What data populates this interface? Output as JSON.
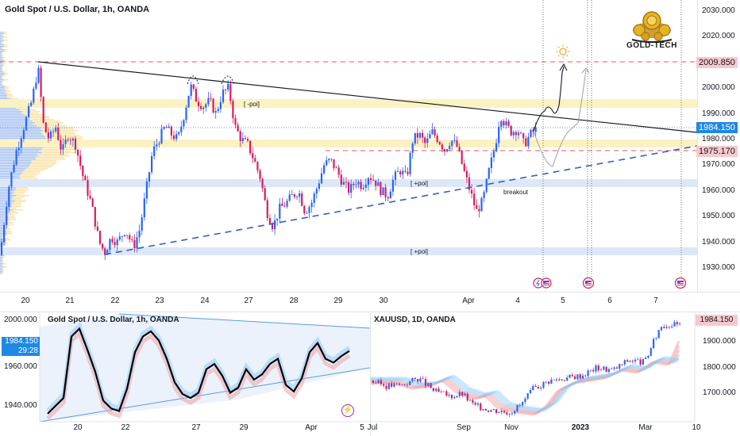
{
  "main": {
    "title": "Gold Spot / U.S. Dollar, 1h, OANDA",
    "logo_text": "GOLD-TECH",
    "price_axis": [
      "2030.000",
      "2020.000",
      "2010.000",
      "2000.000",
      "1990.000",
      "1980.000",
      "1970.000",
      "1960.000",
      "1950.000",
      "1940.000",
      "1930.000"
    ],
    "price_tags": {
      "target": "2009.850",
      "current": "1984.150",
      "support": "1975.170"
    },
    "time_axis": [
      "20",
      "21",
      "22",
      "23",
      "24",
      "27",
      "28",
      "29",
      "30",
      "Apr",
      "4",
      "5",
      "6",
      "7"
    ],
    "annotations": {
      "poi_minus": "[ -poi]",
      "poi_plus_mid": "[ +poi]",
      "poi_plus_low": "[ +poi]",
      "breakout": "breakout"
    },
    "colors": {
      "up": "#2962ff",
      "down": "#d81b60",
      "current_tag": "#1e88e5",
      "target_tag_bg": "#f7c8cc",
      "zone_yellow": "#fbf2c3",
      "zone_blue": "#dce8f8",
      "triangle_line": "#131722",
      "support_dash": "#2f5fd0",
      "resistance_dash": "#ef5350"
    }
  },
  "inset_left": {
    "title": "Gold Spot / U.S. Dollar, 1h, OANDA",
    "price_axis": [
      "2000.000",
      "1960.000",
      "1940.000"
    ],
    "price_tag": "1984.150",
    "countdown": "29:28",
    "time_axis": [
      "20",
      "22",
      "27",
      "29",
      "Apr",
      "5"
    ],
    "chart_data": {
      "type": "line",
      "series": [
        {
          "values": [
            1936,
            1942,
            1948,
            1995,
            2001,
            1985,
            1968,
            1946,
            1940,
            1938,
            1955,
            1983,
            1995,
            1999,
            1992,
            1978,
            1960,
            1951,
            1948,
            1952,
            1970,
            1974,
            1965,
            1952,
            1956,
            1970,
            1962,
            1966,
            1974,
            1978,
            1958,
            1953,
            1963,
            1983,
            1990,
            1978,
            1975,
            1980,
            1984
          ]
        }
      ]
    }
  },
  "inset_right": {
    "title": "XAUUSD, 1D, OANDA",
    "price_axis": [
      "1900.000",
      "1800.000",
      "1700.000"
    ],
    "price_tag": "1984.150",
    "time_axis": [
      "Jul",
      "Sep",
      "Nov",
      "2023",
      "Mar",
      "10"
    ]
  }
}
